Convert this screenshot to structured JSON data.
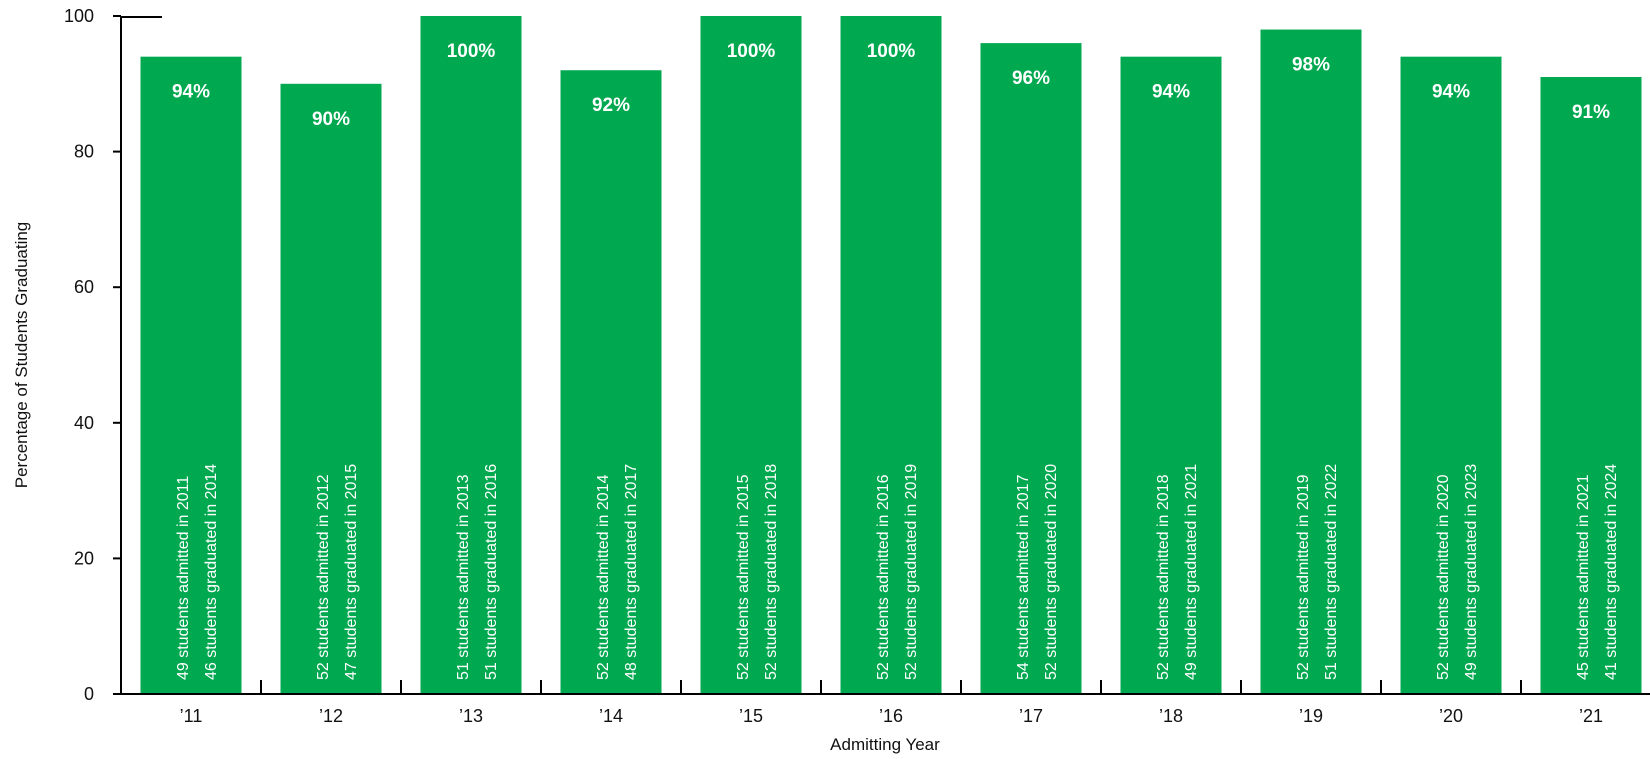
{
  "chart_data": {
    "type": "bar",
    "xlabel": "Admitting Year",
    "ylabel": "Percentage of Students Graduating",
    "ylim": [
      0,
      100
    ],
    "yticks": [
      0,
      20,
      40,
      60,
      80,
      100
    ],
    "grid": false,
    "bar_color": "#00a84f",
    "categories": [
      "’11",
      "’12",
      "’13",
      "’14",
      "’15",
      "’16",
      "’17",
      "’18",
      "’19",
      "’20",
      "’21"
    ],
    "values": [
      94,
      90,
      100,
      92,
      100,
      100,
      96,
      94,
      98,
      94,
      91
    ],
    "value_labels": [
      "94%",
      "90%",
      "100%",
      "92%",
      "100%",
      "100%",
      "96%",
      "94%",
      "98%",
      "94%",
      "91%"
    ],
    "annotations": [
      {
        "admitted": "49 students admitted in 2011",
        "graduated": "46 students graduated in 2014"
      },
      {
        "admitted": "52 students admitted in 2012",
        "graduated": "47 students graduated in 2015"
      },
      {
        "admitted": "51 students admitted in 2013",
        "graduated": "51 students graduated in 2016"
      },
      {
        "admitted": "52 students admitted in 2014",
        "graduated": "48 students graduated in 2017"
      },
      {
        "admitted": "52 students admitted in 2015",
        "graduated": "52 students graduated in 2018"
      },
      {
        "admitted": "52 students admitted in 2016",
        "graduated": "52 students graduated in 2019"
      },
      {
        "admitted": "54 students admitted in 2017",
        "graduated": "52 students graduated in 2020"
      },
      {
        "admitted": "52 students admitted in 2018",
        "graduated": "49 students graduated in 2021"
      },
      {
        "admitted": "52 students admitted in 2019",
        "graduated": "51 students graduated in 2022"
      },
      {
        "admitted": "52 students admitted in 2020",
        "graduated": "49 students graduated in 2023"
      },
      {
        "admitted": "45 students admitted in 2021",
        "graduated": "41 students graduated in 2024"
      }
    ]
  }
}
